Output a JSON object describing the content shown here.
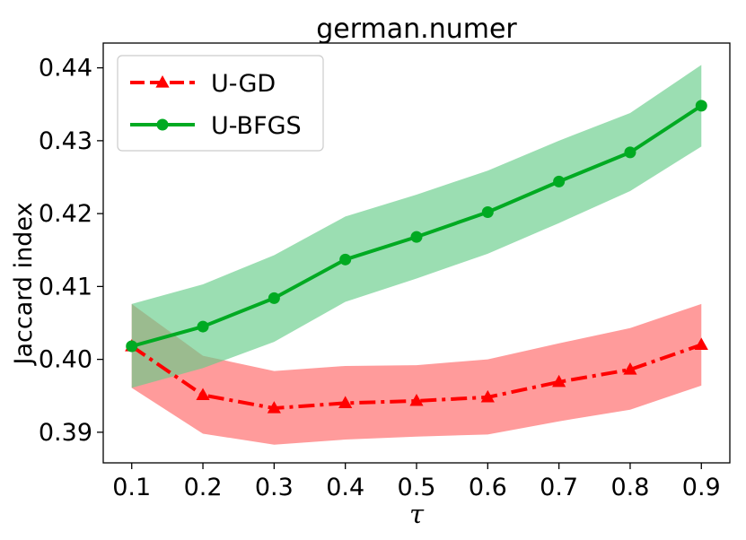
{
  "chart_data": {
    "type": "line",
    "title": "german.numer",
    "xlabel": "τ",
    "ylabel": "Jaccard index",
    "x": [
      0.1,
      0.2,
      0.3,
      0.4,
      0.5,
      0.6,
      0.7,
      0.8,
      0.9
    ],
    "x_tick_labels": [
      "0.1",
      "0.2",
      "0.3",
      "0.4",
      "0.5",
      "0.6",
      "0.7",
      "0.8",
      "0.9"
    ],
    "y_ticks": [
      0.39,
      0.4,
      0.41,
      0.42,
      0.43,
      0.44
    ],
    "y_tick_labels": [
      "0.39",
      "0.40",
      "0.41",
      "0.42",
      "0.43",
      "0.44"
    ],
    "xlim": [
      0.06,
      0.94
    ],
    "ylim": [
      0.3858,
      0.4434
    ],
    "grid": false,
    "legend_position": "top-left",
    "series": [
      {
        "name": "U-GD",
        "color": "#ff0000",
        "band_color": "#ff6666",
        "line_style": "dash-dot",
        "marker": "triangle",
        "values": [
          0.4018,
          0.3951,
          0.3933,
          0.394,
          0.3943,
          0.3948,
          0.3969,
          0.3986,
          0.402
        ],
        "lower": [
          0.3961,
          0.3898,
          0.3883,
          0.389,
          0.3894,
          0.3897,
          0.3915,
          0.3931,
          0.3964
        ],
        "upper": [
          0.4076,
          0.4005,
          0.3984,
          0.3991,
          0.3992,
          0.4,
          0.4022,
          0.4043,
          0.4076
        ]
      },
      {
        "name": "U-BFGS",
        "color": "#00aa22",
        "band_color": "#66cc88",
        "line_style": "solid",
        "marker": "circle",
        "values": [
          0.4018,
          0.4045,
          0.4084,
          0.4137,
          0.4168,
          0.4202,
          0.4244,
          0.4284,
          0.4348
        ],
        "lower": [
          0.3961,
          0.3988,
          0.4024,
          0.4079,
          0.4111,
          0.4145,
          0.4187,
          0.4231,
          0.4292
        ],
        "upper": [
          0.4076,
          0.4103,
          0.4143,
          0.4196,
          0.4226,
          0.4259,
          0.43,
          0.4338,
          0.4404
        ]
      }
    ]
  }
}
